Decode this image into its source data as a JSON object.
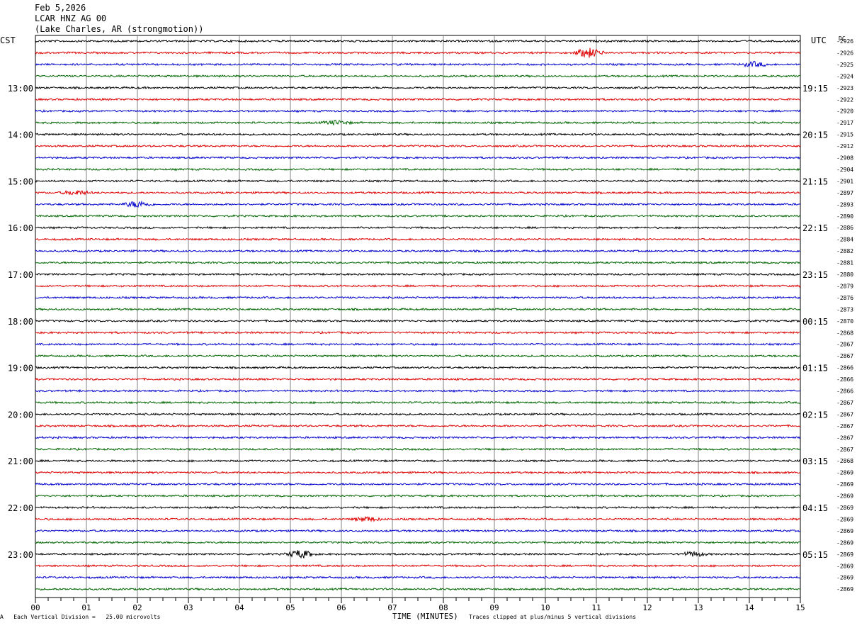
{
  "header": {
    "date": "Feb 5,2026",
    "station": "LCAR HNZ AG 00",
    "location": "(Lake Charles, AR (strongmotion))"
  },
  "labels": {
    "left_tz": "CST",
    "right_tz": "UTC",
    "dc": "DC"
  },
  "footer": {
    "scale_marker": "A",
    "scale_note": "Each Vertical Division =   25.00 microvolts",
    "xlabel": "TIME (MINUTES)",
    "clip_note": "Traces clipped at plus/minus 5 vertical divisions"
  },
  "chart_data": {
    "type": "line",
    "title": "LCAR HNZ AG 00",
    "xlabel": "TIME (MINUTES)",
    "xlim": [
      0,
      15
    ],
    "x_ticks": [
      "00",
      "01",
      "02",
      "03",
      "04",
      "05",
      "06",
      "07",
      "08",
      "09",
      "10",
      "11",
      "12",
      "13",
      "14",
      "15"
    ],
    "left_time_labels": [
      "13:00",
      "14:00",
      "15:00",
      "16:00",
      "17:00",
      "18:00",
      "19:00",
      "20:00",
      "21:00",
      "22:00",
      "23:00"
    ],
    "right_time_labels": [
      "19:15",
      "20:15",
      "21:15",
      "22:15",
      "23:15",
      "00:15",
      "01:15",
      "02:15",
      "03:15",
      "04:15",
      "05:15"
    ],
    "trace_colors": [
      "#000000",
      "#dd0000",
      "#0000cc",
      "#006600"
    ],
    "dc_offsets": [
      "-2926",
      "-2926",
      "-2925",
      "-2924",
      "-2923",
      "-2922",
      "-2920",
      "-2917",
      "-2915",
      "-2912",
      "-2908",
      "-2904",
      "-2901",
      "-2897",
      "-2893",
      "-2890",
      "-2886",
      "-2884",
      "-2882",
      "-2881",
      "-2880",
      "-2879",
      "-2876",
      "-2873",
      "-2870",
      "-2868",
      "-2867",
      "-2867",
      "-2866",
      "-2866",
      "-2866",
      "-2867",
      "-2867",
      "-2867",
      "-2867",
      "-2867",
      "-2868",
      "-2869",
      "-2869",
      "-2869",
      "-2869",
      "-2869",
      "-2869",
      "-2869",
      "-2869",
      "-2869",
      "-2869",
      "-2869"
    ],
    "events": [
      {
        "trace": 1,
        "minute": 10.85,
        "amplitude": 3.0
      },
      {
        "trace": 2,
        "minute": 14.1,
        "amplitude": 1.5
      },
      {
        "trace": 7,
        "minute": 5.9,
        "amplitude": 1.2
      },
      {
        "trace": 13,
        "minute": 0.8,
        "amplitude": 1.4
      },
      {
        "trace": 14,
        "minute": 2.0,
        "amplitude": 2.0
      },
      {
        "trace": 41,
        "minute": 6.5,
        "amplitude": 1.4
      },
      {
        "trace": 44,
        "minute": 5.2,
        "amplitude": 2.5
      },
      {
        "trace": 44,
        "minute": 12.9,
        "amplitude": 1.4
      }
    ]
  }
}
